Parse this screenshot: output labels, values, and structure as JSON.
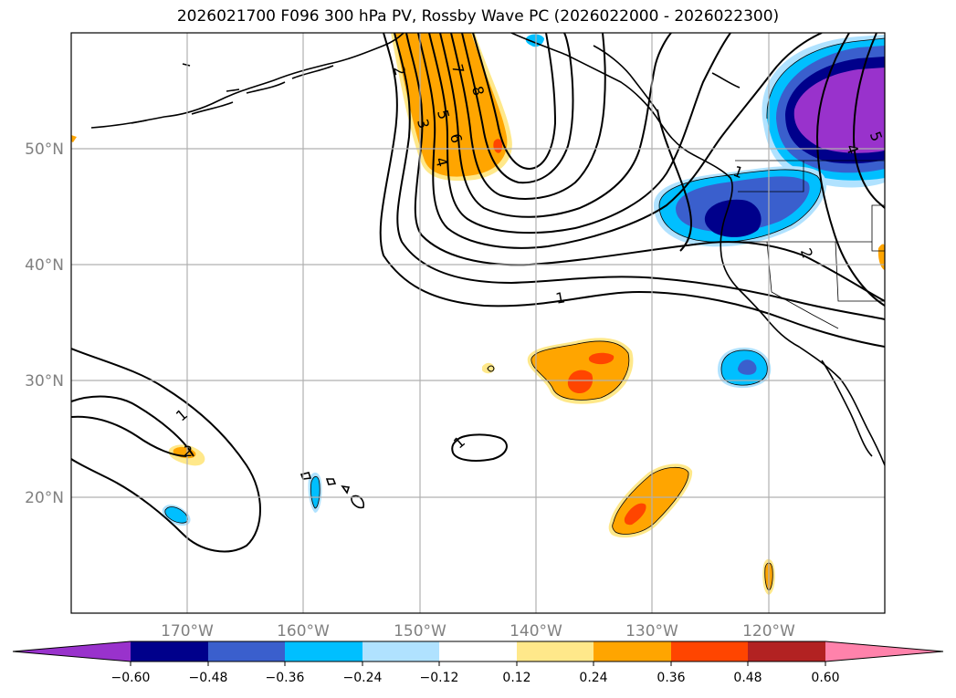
{
  "title": "2026021700 F096 300 hPa PV, Rossby Wave PC (2026022000 - 2026022300)",
  "map": {
    "lat_labels": [
      "50°N",
      "40°N",
      "30°N",
      "20°N"
    ],
    "lon_labels": [
      "170°W",
      "160°W",
      "150°W",
      "140°W",
      "130°W",
      "120°W"
    ],
    "contour_labels": [
      "1",
      "2",
      "3",
      "4",
      "5",
      "6",
      "7",
      "8",
      "1",
      "1",
      "1",
      "2",
      "4",
      "5",
      "2"
    ]
  },
  "colorbar": {
    "tick_labels": [
      "−0.60",
      "−0.48",
      "−0.36",
      "−0.24",
      "−0.12",
      "0.12",
      "0.24",
      "0.36",
      "0.48",
      "0.60"
    ],
    "colors": {
      "lt_-0.60": "#9932cc",
      "-0.60_-0.48": "#00008b",
      "-0.48_-0.36": "#3a5fcd",
      "-0.36_-0.24": "#00bfff",
      "-0.24_-0.12": "#b0e2ff",
      "-0.12_0.12": "#ffffff",
      "0.12_0.24": "#ffe88a",
      "0.24_0.36": "#ffa500",
      "0.36_0.48": "#ff4500",
      "0.48_0.60": "#b22222",
      "gt_0.60": "#ff82ab"
    }
  }
}
